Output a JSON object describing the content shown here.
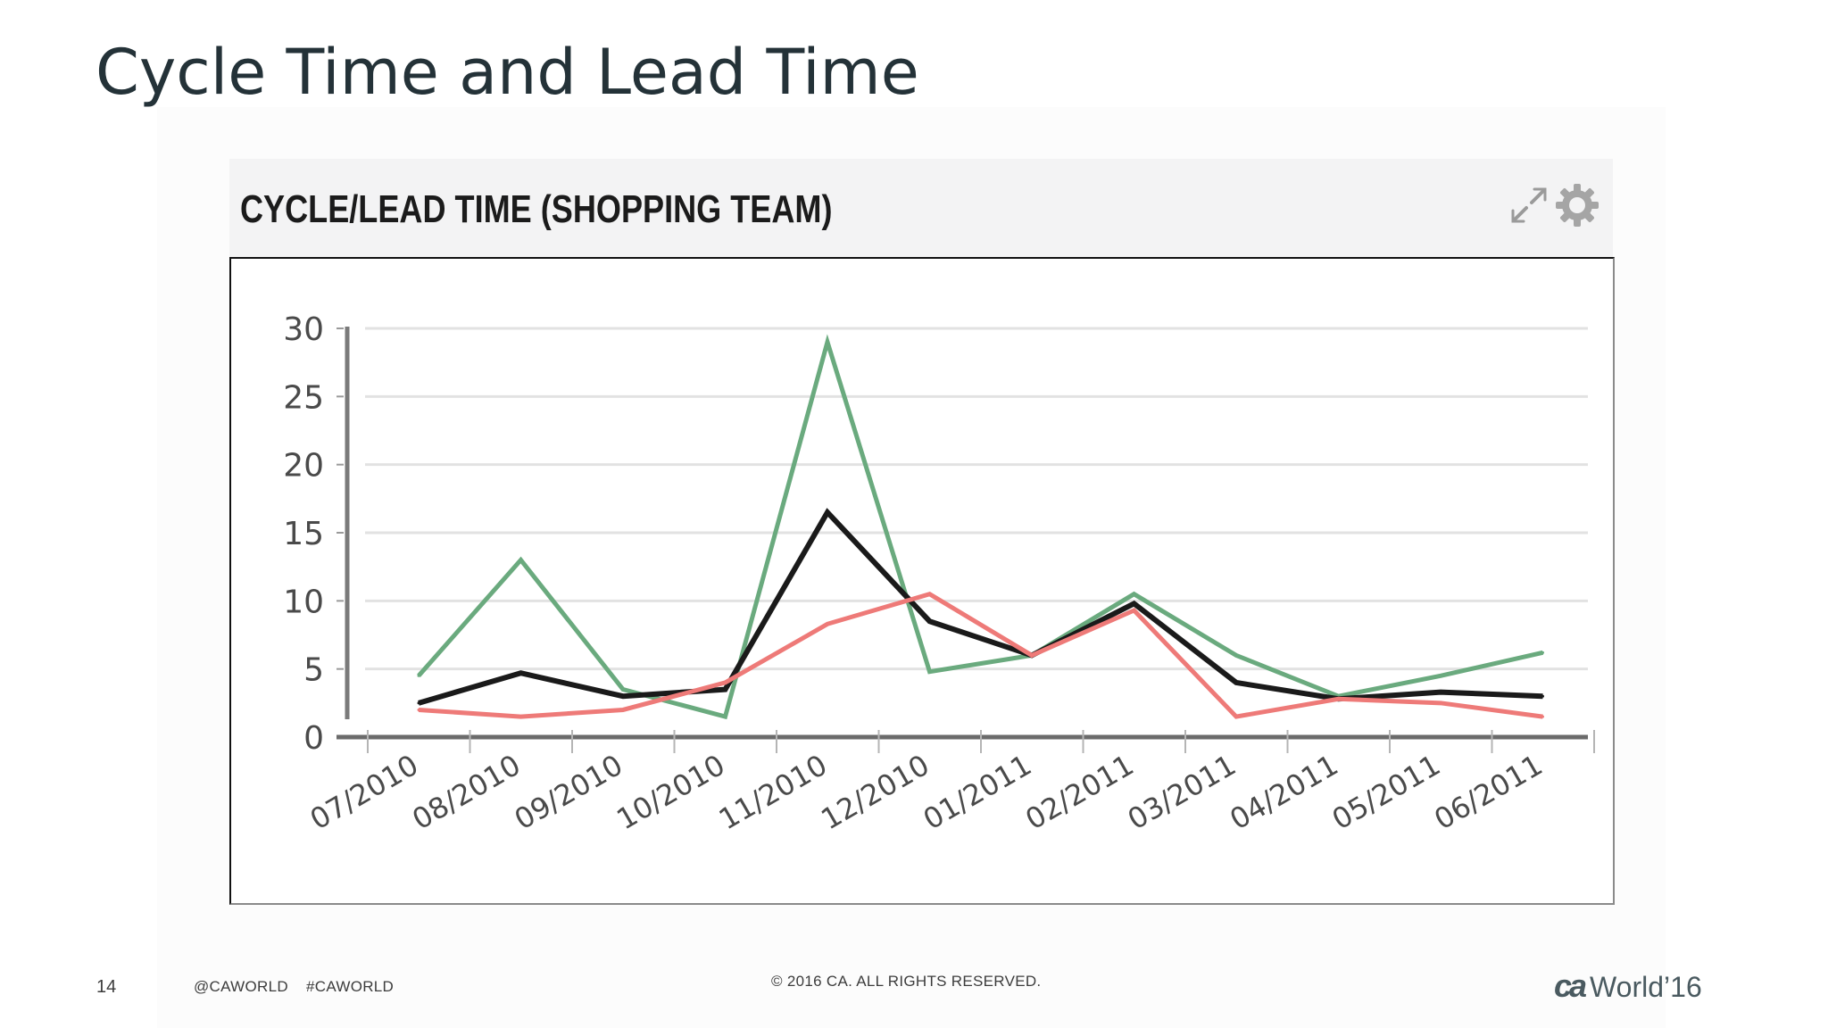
{
  "slide": {
    "title": "Cycle Time and Lead Time",
    "page_number": "14",
    "handles": "@CAWORLD    #CAWORLD",
    "copyright": "© 2016 CA. ALL RIGHTS RESERVED.",
    "logo_mark": "ca",
    "logo_text": "World’16"
  },
  "widget": {
    "title": "CYCLE/LEAD TIME (SHOPPING TEAM)",
    "icons": [
      "expand-icon",
      "gear-icon"
    ]
  },
  "colors": {
    "text": "#243238",
    "grid": "#e2e2e2",
    "axis": "#6b6b6b",
    "series_black": "#1a1a1a",
    "series_green": "#6aaa7e",
    "series_red": "#ee7a78"
  },
  "chart_data": {
    "type": "line",
    "title": "CYCLE/LEAD TIME (SHOPPING TEAM)",
    "xlabel": "",
    "ylabel": "",
    "ylim": [
      0,
      30
    ],
    "yticks": [
      0,
      5,
      10,
      15,
      20,
      25,
      30
    ],
    "grid": true,
    "legend": "none",
    "categories": [
      "07/2010",
      "08/2010",
      "09/2010",
      "10/2010",
      "11/2010",
      "12/2010",
      "01/2011",
      "02/2011",
      "03/2011",
      "04/2011",
      "05/2011",
      "06/2011"
    ],
    "series": [
      {
        "color": "#6aaa7e",
        "values": [
          4.5,
          13,
          3.5,
          1.5,
          29,
          4.8,
          6,
          10.5,
          6,
          3,
          4.5,
          6.2
        ]
      },
      {
        "color": "#1a1a1a",
        "values": [
          2.5,
          4.7,
          3,
          3.5,
          16.5,
          8.5,
          6,
          9.8,
          4,
          2.8,
          3.3,
          3
        ]
      },
      {
        "color": "#ee7a78",
        "values": [
          2,
          1.5,
          2,
          4,
          8.3,
          10.5,
          6,
          9.3,
          1.5,
          2.8,
          2.5,
          1.5
        ]
      }
    ]
  }
}
